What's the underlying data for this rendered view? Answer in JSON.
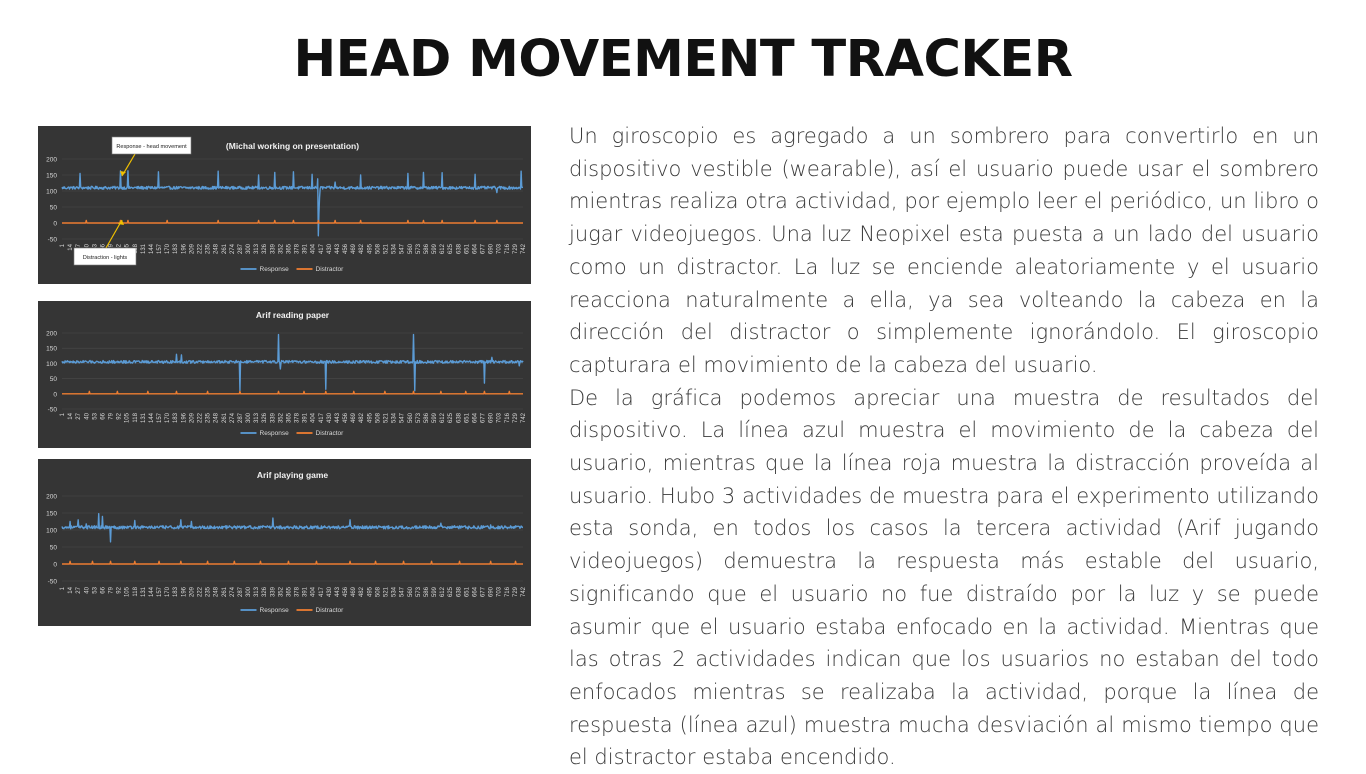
{
  "slide": {
    "title": "HEAD MOVEMENT TRACKER",
    "paragraph1": "Un giroscopio es agregado a un sombrero para convertirlo en un dispositivo vestible (wearable), así el usuario puede usar el sombrero mientras realiza otra actividad, por ejemplo leer el periódico, un libro o jugar videojuegos. Una luz Neopixel esta puesta a un lado del usuario como un distractor. La luz se enciende aleatoriamente y el usuario reacciona naturalmente a ella, ya sea volteando la cabeza en la dirección del distractor o simplemente ignorándolo. El giroscopio capturara el movimiento de la cabeza del usuario.",
    "paragraph2": "De la gráfica podemos apreciar una muestra de resultados del dispositivo. La línea azul muestra el movimiento de la cabeza del usuario, mientras que la línea roja muestra la distracción proveída al usuario. Hubo 3 actividades de muestra para el experimento utilizando esta sonda, en todos los casos la tercera actividad (Arif jugando videojuegos) demuestra la respuesta más estable del usuario, significando que el usuario no fue distraído por la luz y se puede asumir que el usuario estaba enfocado en la actividad. Mientras que las otras 2 actividades indican que los usuarios no estaban del todo enfocados mientras se realizaba la actividad, porque la línea de respuesta (línea azul) muestra mucha desviación al mismo tiempo que el distractor estaba encendido."
  },
  "colors": {
    "response": "#5b9bd5",
    "distractor": "#ed7d31",
    "panel_bg": "#353535",
    "annotation_arrow": "#f0c000"
  },
  "chart_data": [
    {
      "type": "line",
      "title": "(Michal working on presentation)",
      "ylim": [
        -50,
        200
      ],
      "yticks": [
        -50,
        0,
        50,
        100,
        150,
        200
      ],
      "x_range": [
        1,
        742
      ],
      "x_step": 13,
      "legend_position": "bottom",
      "series": [
        {
          "name": "Response",
          "baseline": 110,
          "events": [
            [
              30,
              155
            ],
            [
              95,
              163
            ],
            [
              107,
              163
            ],
            [
              156,
              160
            ],
            [
              252,
              162
            ],
            [
              317,
              150
            ],
            [
              343,
              158
            ],
            [
              373,
              160
            ],
            [
              403,
              152
            ],
            [
              412,
              138
            ],
            [
              413,
              -40
            ],
            [
              414,
              30
            ],
            [
              415,
              80
            ],
            [
              440,
              128
            ],
            [
              481,
              150
            ],
            [
              557,
              155
            ],
            [
              582,
              158
            ],
            [
              612,
              157
            ],
            [
              665,
              152
            ],
            [
              690,
              112
            ],
            [
              700,
              95
            ],
            [
              739,
              162
            ]
          ]
        },
        {
          "name": "Distractor",
          "level": 0,
          "pulse_height": 8,
          "pulses": [
            40,
            95,
            107,
            170,
            252,
            317,
            343,
            373,
            413,
            440,
            481,
            557,
            582,
            612,
            665,
            700
          ]
        }
      ],
      "annotations": [
        {
          "text": "Response - head movement"
        },
        {
          "text": "Distraction - lights"
        }
      ]
    },
    {
      "type": "line",
      "title": "Arif reading paper",
      "ylim": [
        -50,
        200
      ],
      "yticks": [
        -50,
        0,
        50,
        100,
        150,
        200
      ],
      "x_range": [
        1,
        742
      ],
      "x_step": 13,
      "legend_position": "bottom",
      "series": [
        {
          "name": "Response",
          "baseline": 105,
          "events": [
            [
              185,
              130
            ],
            [
              193,
              128
            ],
            [
              287,
              10
            ],
            [
              349,
              195
            ],
            [
              352,
              82
            ],
            [
              425,
              15
            ],
            [
              566,
              195
            ],
            [
              568,
              10
            ],
            [
              680,
              35
            ],
            [
              692,
              120
            ],
            [
              736,
              92
            ]
          ]
        },
        {
          "name": "Distractor",
          "level": 0,
          "pulse_height": 8,
          "pulses": [
            45,
            90,
            139,
            185,
            235,
            287,
            349,
            390,
            425,
            470,
            520,
            566,
            610,
            650,
            680,
            720
          ]
        }
      ]
    },
    {
      "type": "line",
      "title": "Arif playing game",
      "ylim": [
        -50,
        200
      ],
      "yticks": [
        -50,
        0,
        50,
        100,
        150,
        200
      ],
      "x_range": [
        1,
        742
      ],
      "x_step": 13,
      "legend_position": "bottom",
      "series": [
        {
          "name": "Response",
          "baseline": 108,
          "events": [
            [
              14,
              125
            ],
            [
              27,
              130
            ],
            [
              40,
              118
            ],
            [
              60,
              148
            ],
            [
              66,
              140
            ],
            [
              79,
              65
            ],
            [
              118,
              128
            ],
            [
              192,
              130
            ],
            [
              209,
              125
            ],
            [
              340,
              135
            ],
            [
              464,
              130
            ],
            [
              610,
              120
            ],
            [
              690,
              115
            ]
          ]
        },
        {
          "name": "Distractor",
          "level": 0,
          "pulse_height": 8,
          "pulses": [
            14,
            50,
            79,
            118,
            157,
            192,
            235,
            278,
            320,
            365,
            410,
            464,
            505,
            550,
            595,
            640,
            690,
            730
          ]
        }
      ]
    }
  ]
}
